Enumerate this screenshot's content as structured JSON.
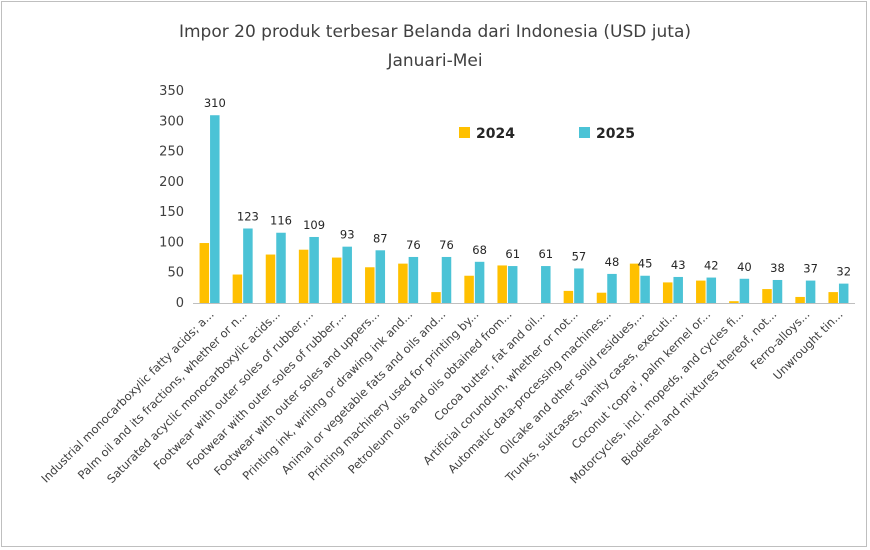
{
  "chart_data": {
    "type": "bar",
    "title": "Impor 20 produk terbesar  Belanda  dari Indonesia  (USD juta)",
    "subtitle": "Januari-Mei",
    "ylim": [
      0,
      350
    ],
    "yticks": [
      0,
      50,
      100,
      150,
      200,
      250,
      300,
      350
    ],
    "grid": false,
    "legend_position": "top-center",
    "categories": [
      "Industrial monocarboxylic fatty acids; a...",
      "Palm oil and its fractions, whether or n...",
      "Saturated acyclic monocarboxylic acids...",
      "Footwear with outer soles of rubber,...",
      "Footwear with outer soles of rubber,...",
      "Footwear with outer soles and uppers...",
      "Printing ink, writing or drawing ink and...",
      "Animal or vegetable fats and oils and...",
      "Printing machinery used for printing by...",
      "Petroleum oils and oils obtained from...",
      "Cocoa butter, fat and oil...",
      "Artificial corundum, whether or not...",
      "Automatic data-processing machines...",
      "Oilcake and other solid residues,...",
      "Trunks, suitcases, vanity cases, executi...",
      "Coconut 'copra', palm kernel or...",
      "Motorcycles, incl. mopeds, and cycles fi...",
      "Biodiesel and mixtures thereof, not...",
      "Ferro-alloys...",
      "Unwrought tin..."
    ],
    "series": [
      {
        "name": "2024",
        "color": "#FFC000",
        "values": [
          99,
          47,
          80,
          88,
          75,
          59,
          65,
          18,
          45,
          62,
          0,
          20,
          17,
          65,
          34,
          37,
          3,
          23,
          10,
          18
        ]
      },
      {
        "name": "2025",
        "color": "#4BC3D6",
        "values": [
          310,
          123,
          116,
          109,
          93,
          87,
          76,
          76,
          68,
          61,
          61,
          57,
          48,
          45,
          43,
          42,
          40,
          38,
          37,
          32
        ]
      }
    ],
    "data_labels": [
      "310",
      "123",
      "116",
      "109",
      "93",
      "87",
      "76",
      "76",
      "68",
      "61",
      "61",
      "57",
      "48",
      "45",
      "43",
      "42",
      "40",
      "38",
      "37",
      "32"
    ]
  }
}
